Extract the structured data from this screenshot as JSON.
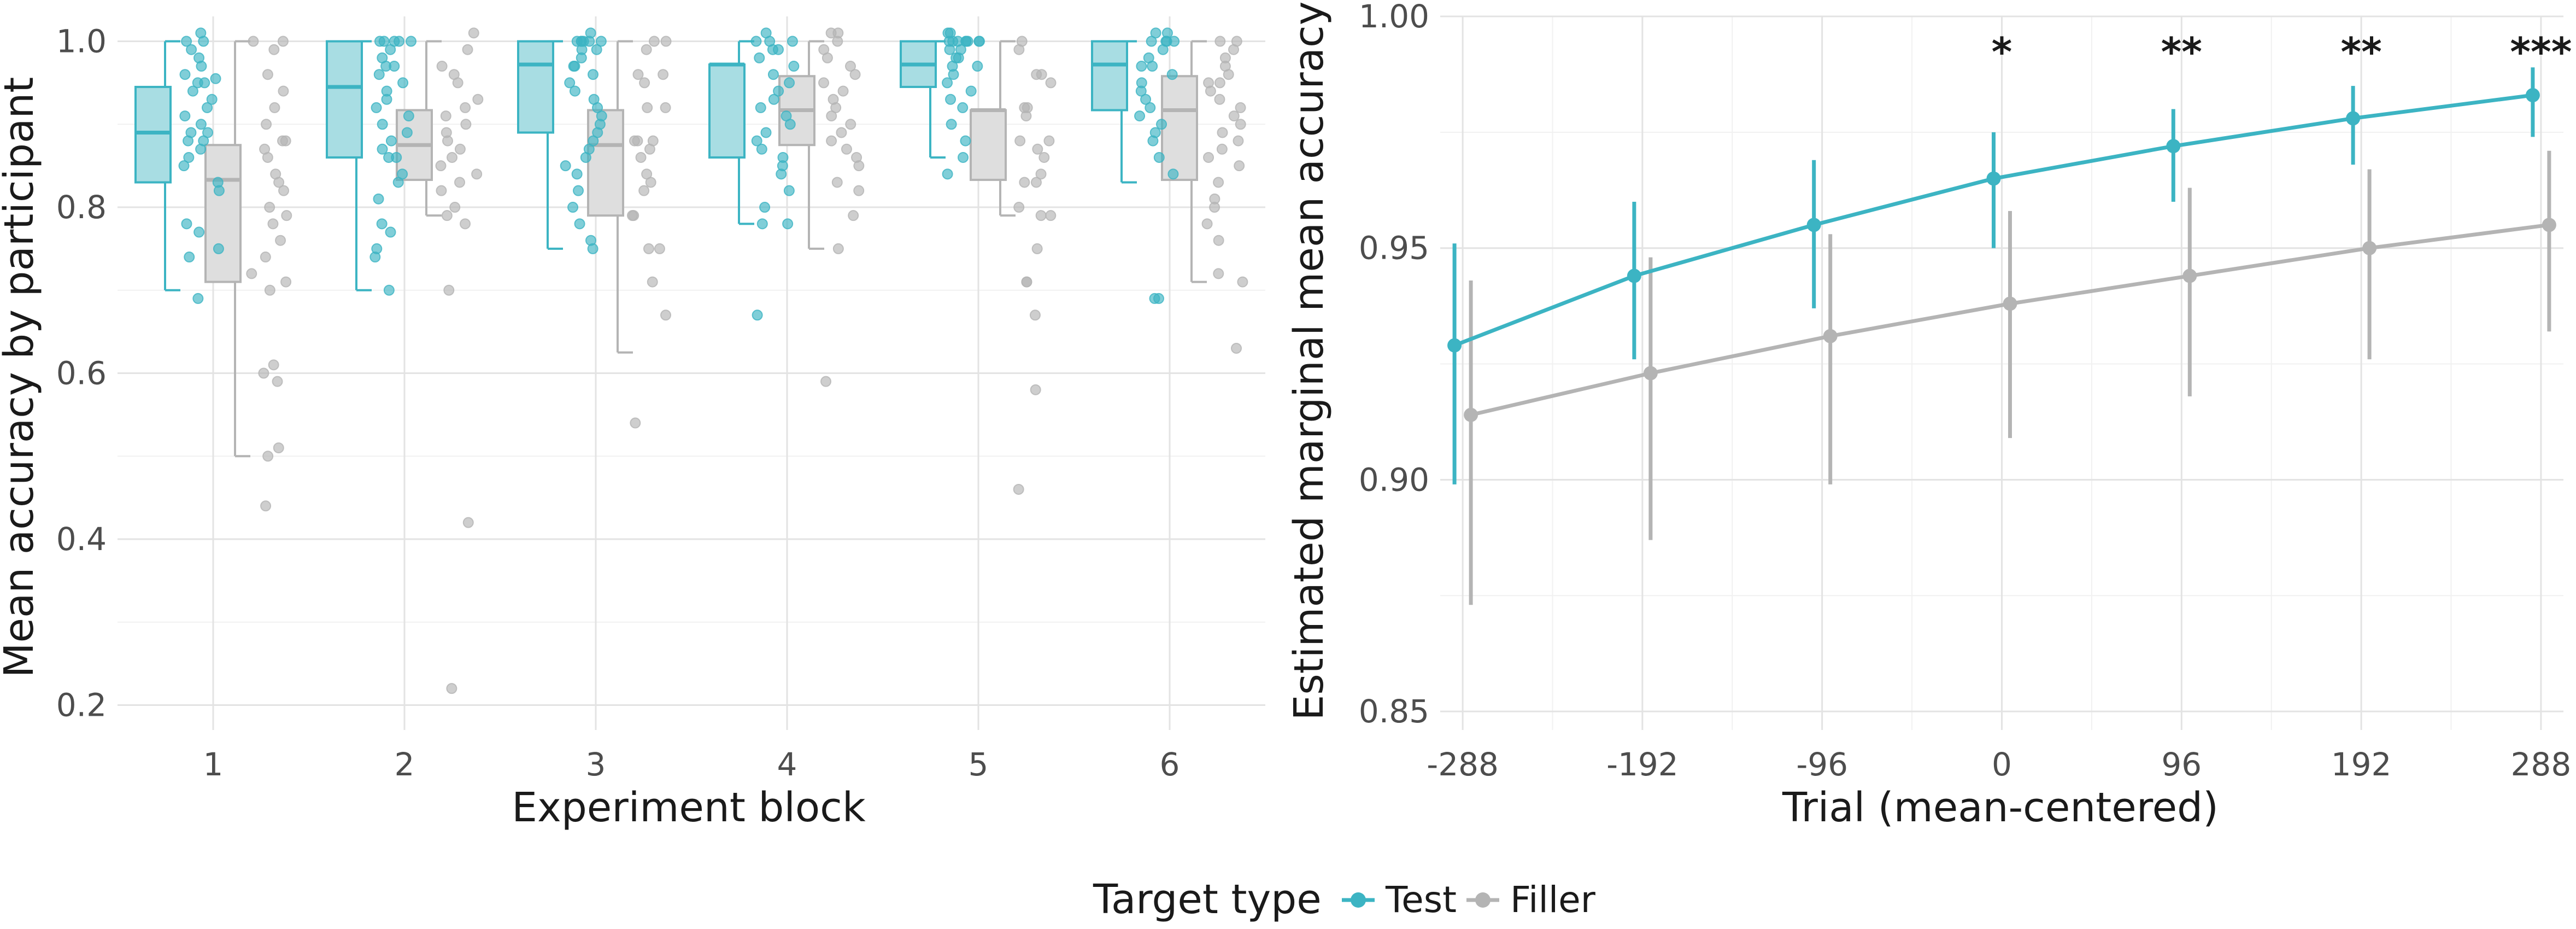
{
  "colors": {
    "test": "#3cb4c3",
    "filler": "#b4b4b4"
  },
  "legend": {
    "title": "Target type",
    "items": [
      {
        "key": "test",
        "label": "Test"
      },
      {
        "key": "filler",
        "label": "Filler"
      }
    ]
  },
  "chart_data": [
    {
      "type": "box",
      "title": "",
      "xlabel": "Experiment block",
      "ylabel": "Mean accuracy by participant",
      "categories": [
        "1",
        "2",
        "3",
        "4",
        "5",
        "6"
      ],
      "ylim": [
        0.17,
        1.03
      ],
      "yticks": [
        "0.2",
        "0.4",
        "0.6",
        "0.8",
        "1.0"
      ],
      "ytick_values": [
        0.2,
        0.4,
        0.6,
        0.8,
        1.0
      ],
      "series": [
        {
          "name": "Test",
          "key": "test",
          "boxes": [
            {
              "min": 0.7,
              "q1": 0.83,
              "median": 0.89,
              "q3": 0.945,
              "max": 1.0,
              "points": [
                1.01,
                1.0,
                1.0,
                0.99,
                0.98,
                0.97,
                0.96,
                0.955,
                0.95,
                0.95,
                0.94,
                0.93,
                0.92,
                0.91,
                0.9,
                0.89,
                0.89,
                0.88,
                0.88,
                0.87,
                0.86,
                0.85,
                0.83,
                0.82,
                0.78,
                0.77,
                0.75,
                0.74,
                0.69
              ]
            },
            {
              "min": 0.7,
              "q1": 0.86,
              "median": 0.945,
              "q3": 1.0,
              "max": 1.0,
              "points": [
                1.0,
                1.0,
                1.0,
                1.0,
                1.0,
                0.99,
                0.98,
                0.97,
                0.97,
                0.96,
                0.95,
                0.94,
                0.93,
                0.92,
                0.91,
                0.9,
                0.89,
                0.88,
                0.87,
                0.86,
                0.86,
                0.84,
                0.83,
                0.81,
                0.78,
                0.77,
                0.75,
                0.74,
                0.7
              ]
            },
            {
              "min": 0.75,
              "q1": 0.89,
              "median": 0.972,
              "q3": 1.0,
              "max": 1.0,
              "points": [
                1.01,
                1.0,
                1.0,
                1.0,
                1.0,
                1.0,
                1.0,
                0.99,
                0.99,
                0.98,
                0.97,
                0.97,
                0.96,
                0.95,
                0.94,
                0.93,
                0.92,
                0.91,
                0.9,
                0.89,
                0.88,
                0.87,
                0.86,
                0.85,
                0.84,
                0.82,
                0.8,
                0.78,
                0.76,
                0.75
              ]
            },
            {
              "min": 0.78,
              "q1": 0.86,
              "median": 0.972,
              "q3": 0.972,
              "max": 1.0,
              "points": [
                1.01,
                1.0,
                1.0,
                1.0,
                0.99,
                0.99,
                0.98,
                0.97,
                0.96,
                0.95,
                0.94,
                0.93,
                0.92,
                0.91,
                0.9,
                0.89,
                0.88,
                0.87,
                0.86,
                0.85,
                0.84,
                0.82,
                0.8,
                0.78,
                0.78,
                0.67
              ]
            },
            {
              "min": 0.86,
              "q1": 0.945,
              "median": 0.972,
              "q3": 1.0,
              "max": 1.0,
              "points": [
                1.01,
                1.01,
                1.0,
                1.0,
                1.0,
                1.0,
                1.0,
                1.0,
                1.0,
                1.0,
                0.99,
                0.99,
                0.98,
                0.98,
                0.97,
                0.97,
                0.96,
                0.95,
                0.94,
                0.93,
                0.92,
                0.9,
                0.88,
                0.86,
                0.84
              ]
            },
            {
              "min": 0.83,
              "q1": 0.917,
              "median": 0.972,
              "q3": 1.0,
              "max": 1.0,
              "points": [
                1.01,
                1.01,
                1.0,
                1.0,
                1.0,
                1.0,
                0.99,
                0.98,
                0.97,
                0.97,
                0.96,
                0.95,
                0.94,
                0.93,
                0.92,
                0.91,
                0.9,
                0.89,
                0.88,
                0.86,
                0.84,
                0.69,
                0.69
              ]
            }
          ]
        },
        {
          "name": "Filler",
          "key": "filler",
          "boxes": [
            {
              "min": 0.5,
              "q1": 0.71,
              "median": 0.833,
              "q3": 0.875,
              "max": 1.0,
              "points": [
                1.0,
                1.0,
                0.99,
                0.96,
                0.94,
                0.92,
                0.9,
                0.88,
                0.88,
                0.87,
                0.86,
                0.84,
                0.83,
                0.82,
                0.8,
                0.79,
                0.78,
                0.76,
                0.74,
                0.72,
                0.71,
                0.7,
                0.61,
                0.6,
                0.59,
                0.51,
                0.5,
                0.44
              ]
            },
            {
              "min": 0.79,
              "q1": 0.833,
              "median": 0.875,
              "q3": 0.917,
              "max": 1.0,
              "points": [
                1.01,
                0.99,
                0.97,
                0.96,
                0.95,
                0.93,
                0.92,
                0.91,
                0.9,
                0.89,
                0.88,
                0.87,
                0.86,
                0.85,
                0.84,
                0.83,
                0.82,
                0.8,
                0.79,
                0.78,
                0.7,
                0.42,
                0.22
              ]
            },
            {
              "min": 0.625,
              "q1": 0.79,
              "median": 0.875,
              "q3": 0.917,
              "max": 1.0,
              "points": [
                1.0,
                1.0,
                0.99,
                0.96,
                0.96,
                0.95,
                0.92,
                0.92,
                0.88,
                0.88,
                0.88,
                0.87,
                0.86,
                0.84,
                0.83,
                0.82,
                0.79,
                0.79,
                0.75,
                0.75,
                0.71,
                0.67,
                0.54
              ]
            },
            {
              "min": 0.75,
              "q1": 0.875,
              "median": 0.917,
              "q3": 0.958,
              "max": 1.0,
              "points": [
                1.01,
                1.01,
                1.0,
                0.99,
                0.98,
                0.97,
                0.96,
                0.95,
                0.94,
                0.93,
                0.92,
                0.91,
                0.9,
                0.89,
                0.88,
                0.87,
                0.86,
                0.85,
                0.83,
                0.82,
                0.79,
                0.75,
                0.59
              ]
            },
            {
              "min": 0.79,
              "q1": 0.833,
              "median": 0.917,
              "q3": 0.917,
              "max": 1.0,
              "points": [
                1.0,
                0.99,
                0.96,
                0.96,
                0.95,
                0.92,
                0.92,
                0.91,
                0.88,
                0.88,
                0.87,
                0.86,
                0.84,
                0.83,
                0.83,
                0.8,
                0.79,
                0.79,
                0.75,
                0.71,
                0.71,
                0.67,
                0.58,
                0.46
              ]
            },
            {
              "min": 0.71,
              "q1": 0.833,
              "median": 0.917,
              "q3": 0.958,
              "max": 1.0,
              "points": [
                1.0,
                1.0,
                0.99,
                0.98,
                0.97,
                0.96,
                0.95,
                0.95,
                0.94,
                0.93,
                0.92,
                0.91,
                0.9,
                0.89,
                0.88,
                0.87,
                0.86,
                0.85,
                0.83,
                0.81,
                0.8,
                0.78,
                0.76,
                0.72,
                0.71,
                0.63
              ]
            }
          ]
        }
      ]
    },
    {
      "type": "line",
      "title": "",
      "xlabel": "Trial (mean-centered)",
      "ylabel": "Estimated marginal mean accuracy",
      "x": [
        -288,
        -192,
        -96,
        0,
        96,
        192,
        288
      ],
      "xticks": [
        "-288",
        "-192",
        "-96",
        "0",
        "96",
        "192",
        "288"
      ],
      "ylim": [
        0.846,
        1.0
      ],
      "yticks": [
        "0.85",
        "0.90",
        "0.95",
        "1.00"
      ],
      "ytick_values": [
        0.85,
        0.9,
        0.95,
        1.0
      ],
      "series": [
        {
          "name": "Test",
          "key": "test",
          "values": [
            0.929,
            0.944,
            0.955,
            0.965,
            0.972,
            0.978,
            0.983
          ],
          "lower": [
            0.899,
            0.926,
            0.937,
            0.95,
            0.96,
            0.968,
            0.974
          ],
          "upper": [
            0.951,
            0.96,
            0.969,
            0.975,
            0.98,
            0.985,
            0.989
          ]
        },
        {
          "name": "Filler",
          "key": "filler",
          "values": [
            0.914,
            0.923,
            0.931,
            0.938,
            0.944,
            0.95,
            0.955
          ],
          "lower": [
            0.873,
            0.887,
            0.899,
            0.909,
            0.918,
            0.926,
            0.932
          ],
          "upper": [
            0.943,
            0.948,
            0.953,
            0.958,
            0.963,
            0.967,
            0.971
          ]
        }
      ],
      "annotations": [
        {
          "x": 0,
          "text": "*"
        },
        {
          "x": 96,
          "text": "**"
        },
        {
          "x": 192,
          "text": "**"
        },
        {
          "x": 288,
          "text": "***"
        }
      ]
    }
  ]
}
